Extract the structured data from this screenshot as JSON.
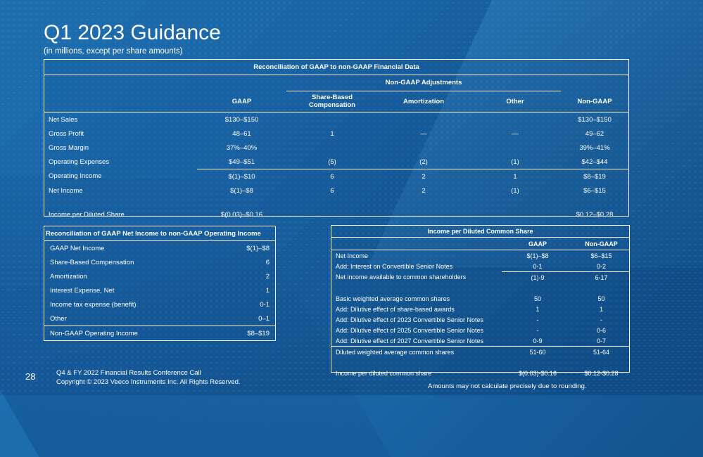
{
  "title": "Q1 2023 Guidance",
  "subtitle": "(in millions, except per share amounts)",
  "main_table": {
    "title": "Reconciliation of GAAP to non-GAAP Financial Data",
    "adjustments_header": "Non-GAAP Adjustments",
    "columns": [
      "GAAP",
      "Share-Based",
      "Compensation",
      "Amortization",
      "Other",
      "Non-GAAP"
    ],
    "rows": [
      {
        "label": "Net Sales",
        "gaap": "$130–$150",
        "sbc": "",
        "amort": "",
        "other": "",
        "nongaap": "$130–$150"
      },
      {
        "label": "Gross Profit",
        "gaap": "48–61",
        "sbc": "1",
        "amort": "—",
        "other": "—",
        "nongaap": "49–62"
      },
      {
        "label": "Gross Margin",
        "gaap": "37%–40%",
        "sbc": "",
        "amort": "",
        "other": "",
        "nongaap": "39%–41%"
      },
      {
        "label": "Operating Expenses",
        "gaap": "$49–$51",
        "sbc": "(5)",
        "amort": "(2)",
        "other": "(1)",
        "nongaap": "$42–$44"
      },
      {
        "label": "Operating Income",
        "gaap": "$(1)–$10",
        "sbc": "6",
        "amort": "2",
        "other": "1",
        "nongaap": "$8–$19"
      },
      {
        "label": "Net Income",
        "gaap": "$(1)–$8",
        "sbc": "6",
        "amort": "2",
        "other": "(1)",
        "nongaap": "$6–$15"
      },
      {
        "label": "Income per Diluted Share",
        "gaap": "$(0.03)–$0.16",
        "sbc": "",
        "amort": "",
        "other": "",
        "nongaap": "$0.12–$0.28"
      }
    ]
  },
  "left_table": {
    "title": "Reconciliation of GAAP Net Income to non-GAAP Operating Income",
    "rows": [
      {
        "label": "GAAP Net Income",
        "value": "$(1)–$8"
      },
      {
        "label": "Share-Based Compensation",
        "value": "6"
      },
      {
        "label": "Amortization",
        "value": "2"
      },
      {
        "label": "Interest Expense, Net",
        "value": "1"
      },
      {
        "label": "Income tax expense (benefit)",
        "value": "0-1"
      },
      {
        "label": "Other",
        "value": "0–1"
      },
      {
        "label": "Non-GAAP Operating Income",
        "value": "$8–$19"
      }
    ]
  },
  "right_table": {
    "title": "Income per Diluted Common Share",
    "col_gaap": "GAAP",
    "col_nongaap": "Non-GAAP",
    "rows": [
      {
        "label": "Net Income",
        "gaap": "$(1)–$8",
        "nongaap": "$6–$15"
      },
      {
        "label": "Add: Interest on Convertible Senior Notes",
        "gaap": "0-1",
        "nongaap": "0-2"
      },
      {
        "label": "Net income available to common shareholders",
        "gaap": "(1)-9",
        "nongaap": "6-17"
      },
      {
        "label": "Basic weighted average common shares",
        "gaap": "50",
        "nongaap": "50"
      },
      {
        "label": "Add: Dilutive effect of share-based awards",
        "gaap": "1",
        "nongaap": "1"
      },
      {
        "label": "Add: Dilutive effect of 2023 Convertible Senior Notes",
        "gaap": "-",
        "nongaap": "-"
      },
      {
        "label": "Add: Dilutive effect of 2025 Convertible Senior Notes",
        "gaap": "-",
        "nongaap": "0-6"
      },
      {
        "label": "Add: Dilutive effect of 2027 Convertible Senior Notes",
        "gaap": "0-9",
        "nongaap": "0-7"
      },
      {
        "label": "Diluted weighted average common shares",
        "gaap": "51-60",
        "nongaap": "51-64"
      },
      {
        "label": "Income per diluted common share",
        "gaap": "$(0.03)-$0.16",
        "nongaap": "$0.12-$0.28"
      }
    ]
  },
  "footer": {
    "page_number": "28",
    "line1": "Q4 & FY 2022 Financial Results Conference Call",
    "line2": "Copyright © 2023 Veeco Instruments Inc. All Rights Reserved.",
    "note": "Amounts may not calculate precisely due to rounding."
  }
}
